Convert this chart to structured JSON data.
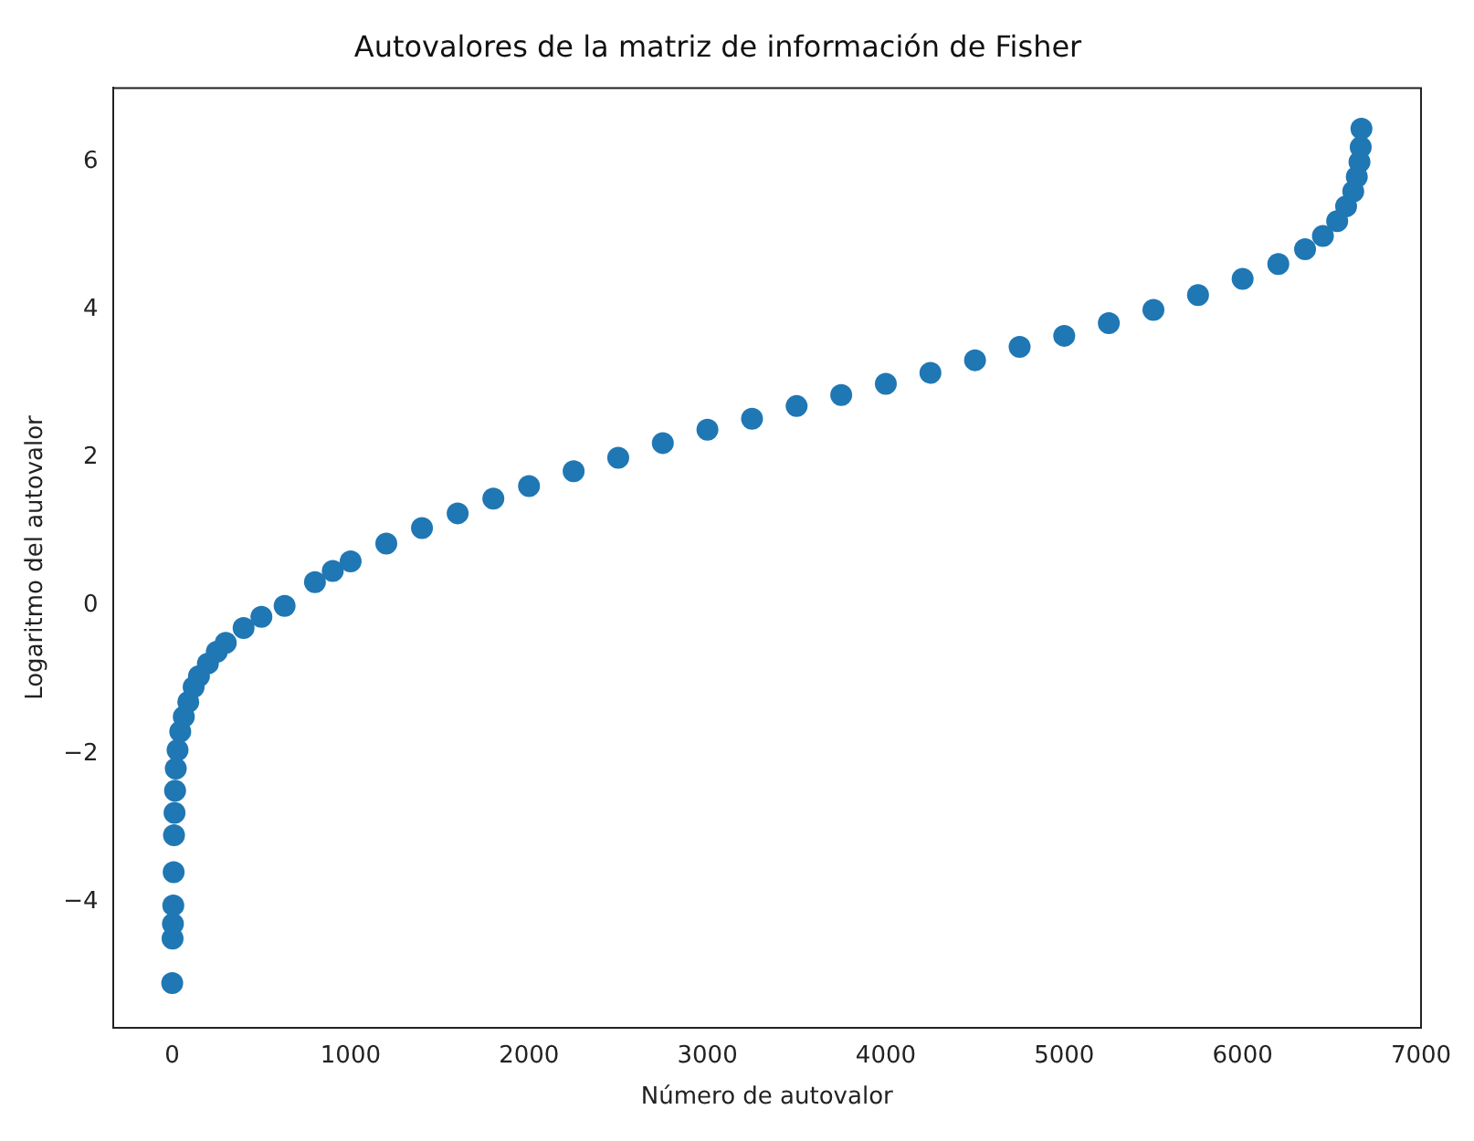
{
  "chart_data": {
    "type": "scatter",
    "title": "Autovalores de la matriz de información de Fisher",
    "xlabel": "Número de autovalor",
    "ylabel": "Logaritmo del autovalor",
    "xlim": [
      -333,
      7000
    ],
    "xticks": [
      0,
      1000,
      2000,
      3000,
      4000,
      5000,
      6000,
      7000
    ],
    "ylim": [
      -5.7,
      7.0
    ],
    "yticks": [
      -4,
      -2,
      0,
      2,
      4,
      6
    ],
    "grid": false,
    "legend": false,
    "marker": "circle",
    "series": [
      {
        "color": "#1f77b4",
        "x": [
          0,
          2,
          4,
          6,
          8,
          10,
          13,
          16,
          20,
          30,
          45,
          65,
          90,
          120,
          150,
          200,
          250,
          300,
          400,
          500,
          630,
          800,
          900,
          1000,
          1200,
          1400,
          1600,
          1800,
          2000,
          2250,
          2500,
          2750,
          3000,
          3250,
          3500,
          3750,
          4000,
          4250,
          4500,
          4750,
          5000,
          5250,
          5500,
          5750,
          6000,
          6200,
          6350,
          6450,
          6530,
          6580,
          6620,
          6640,
          6655,
          6662,
          6666
        ],
        "values": [
          -5.1,
          -4.5,
          -4.3,
          -4.05,
          -3.6,
          -3.1,
          -2.8,
          -2.5,
          -2.2,
          -1.95,
          -1.7,
          -1.5,
          -1.3,
          -1.1,
          -0.95,
          -0.78,
          -0.62,
          -0.5,
          -0.3,
          -0.15,
          0.0,
          0.32,
          0.47,
          0.6,
          0.84,
          1.05,
          1.25,
          1.45,
          1.62,
          1.82,
          2.0,
          2.2,
          2.38,
          2.53,
          2.7,
          2.85,
          3.0,
          3.15,
          3.32,
          3.5,
          3.65,
          3.82,
          4.0,
          4.2,
          4.42,
          4.62,
          4.82,
          5.0,
          5.2,
          5.4,
          5.6,
          5.8,
          6.0,
          6.2,
          6.45
        ]
      }
    ]
  }
}
